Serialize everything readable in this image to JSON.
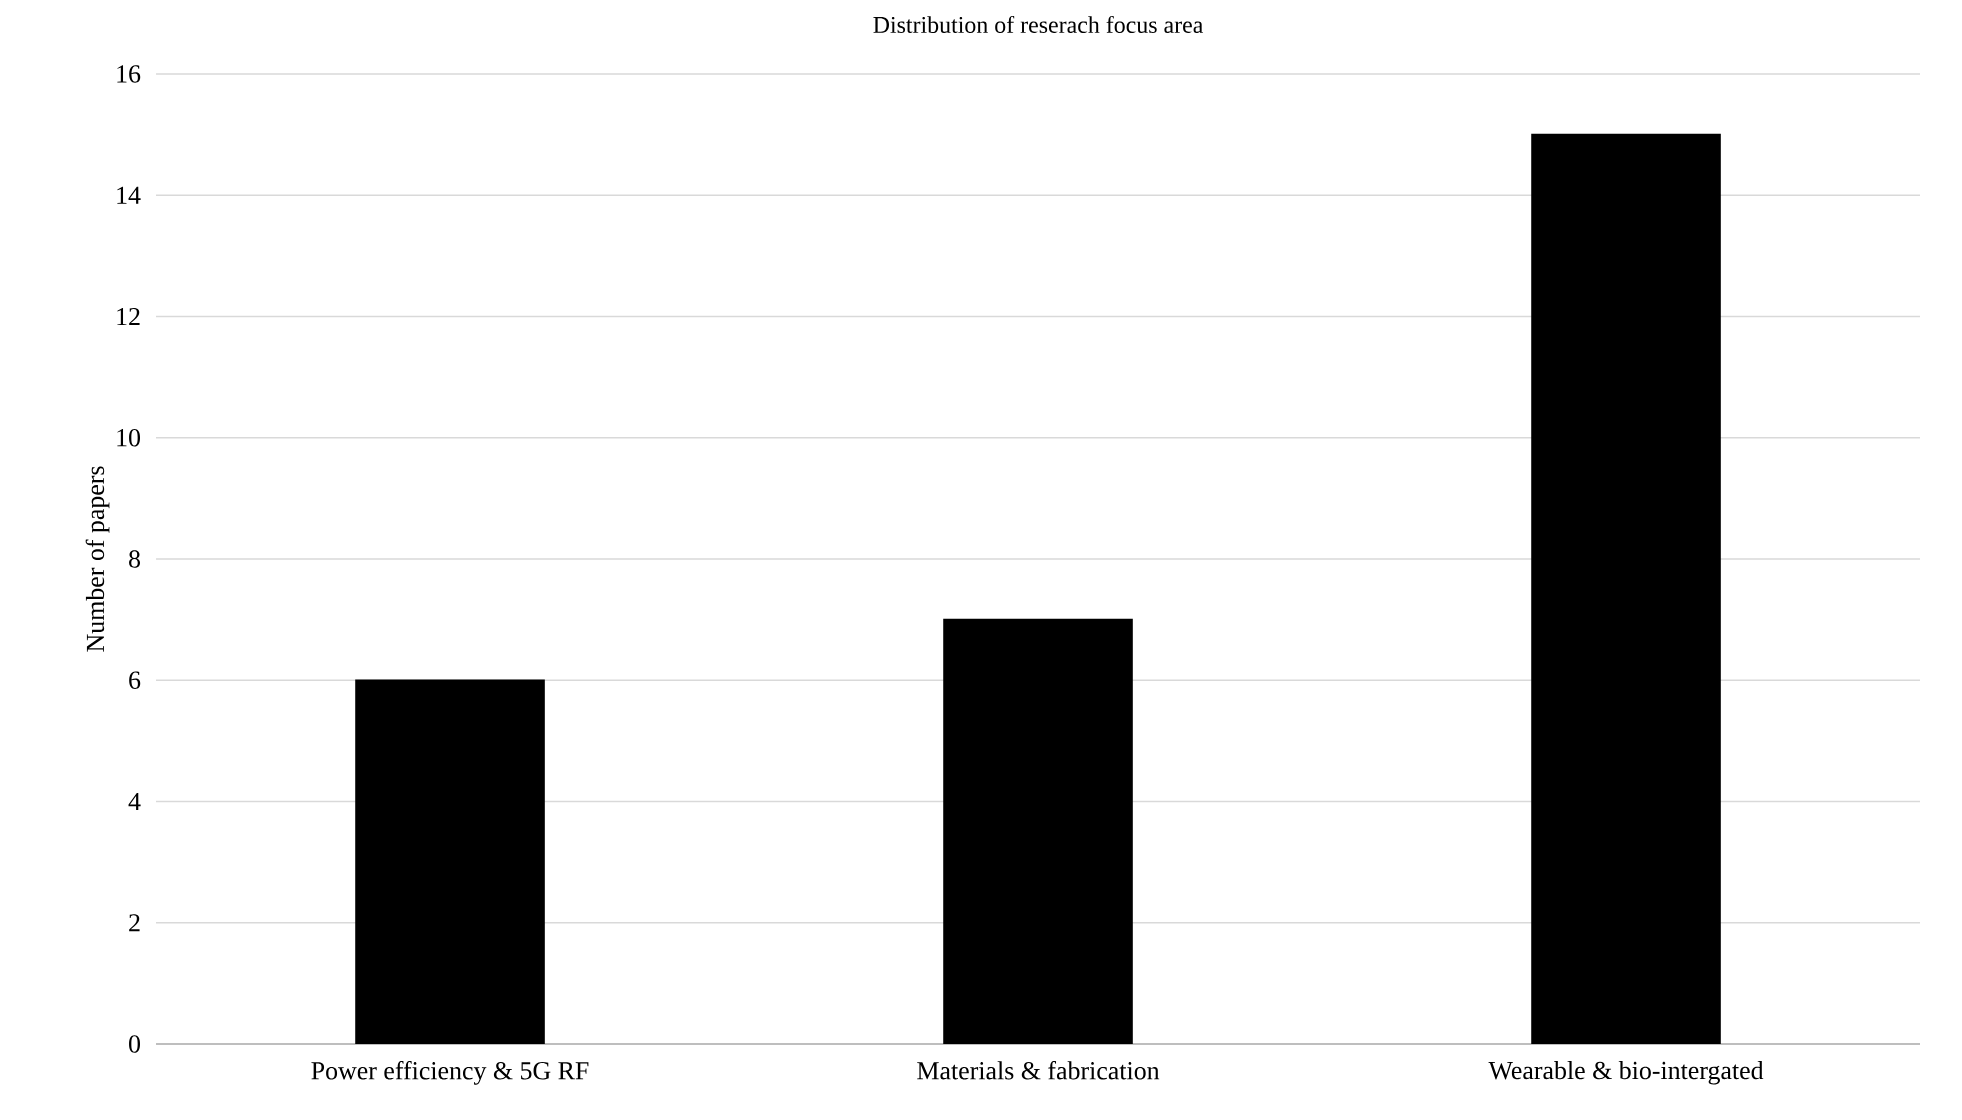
{
  "chart_data": {
    "type": "bar",
    "title": "Distribution of reserach focus area",
    "ylabel": "Number of papers",
    "categories": [
      "Power efficiency & 5G RF",
      "Materials & fabrication",
      "Wearable & bio-intergated"
    ],
    "values": [
      6,
      7,
      15
    ],
    "color": "#000000",
    "ylim": [
      0,
      16
    ],
    "yticks": [
      0,
      2,
      4,
      6,
      8,
      10,
      12,
      14,
      16
    ],
    "grid": "y"
  }
}
